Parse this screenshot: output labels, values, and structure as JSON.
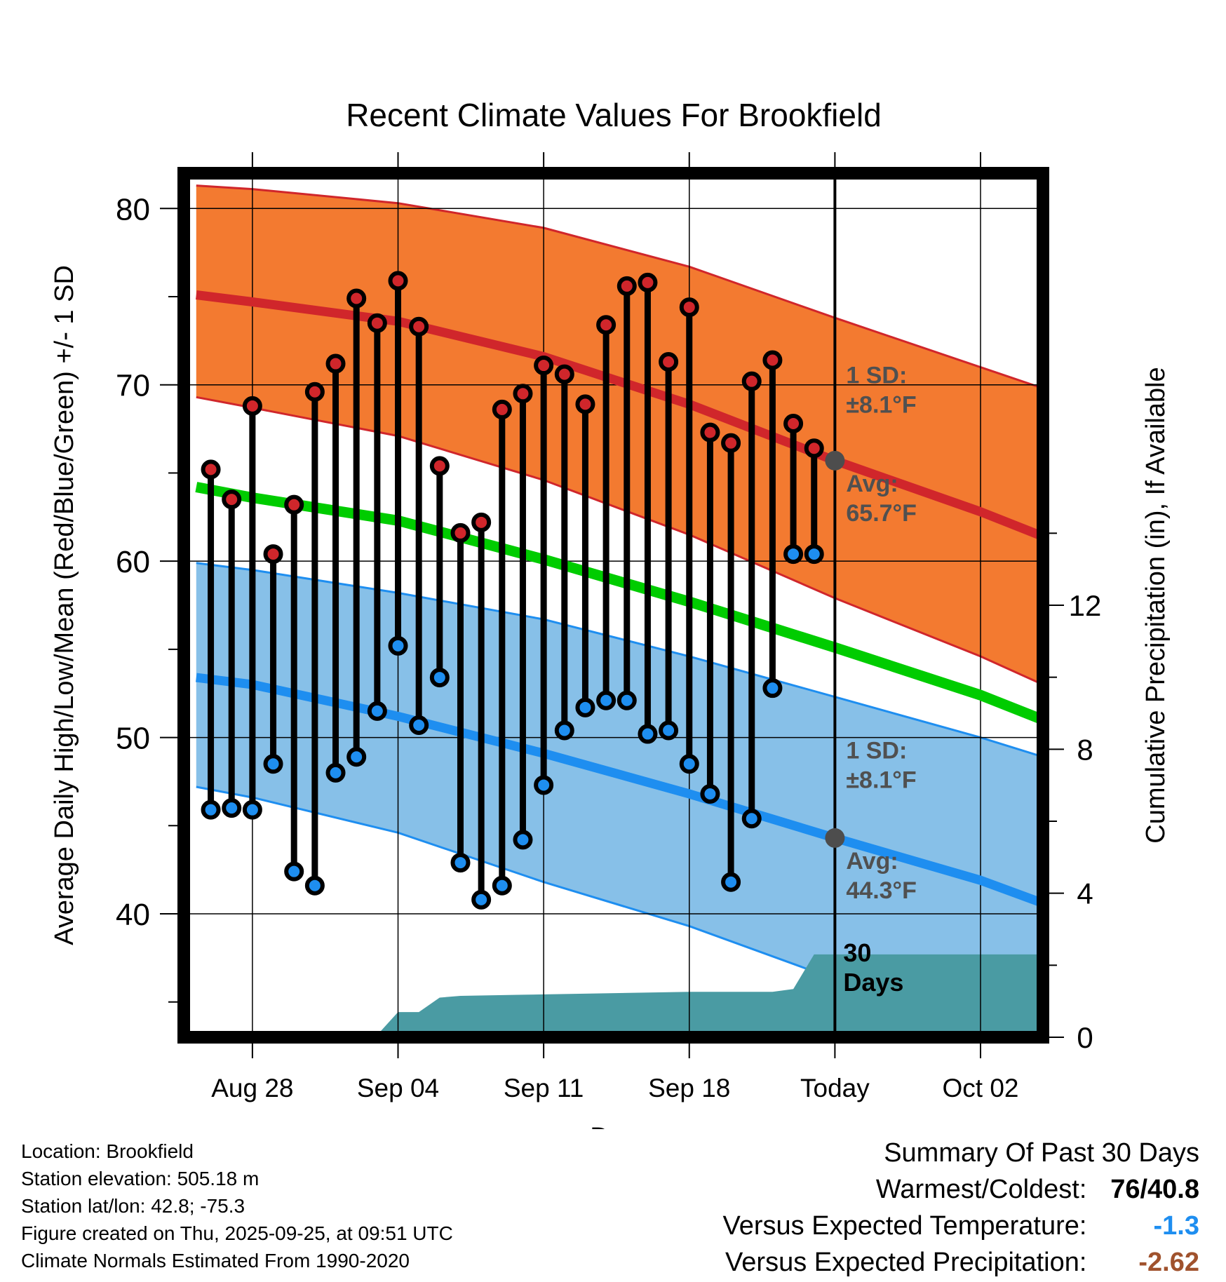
{
  "chart_data": {
    "type": "line",
    "title": "Recent Climate Values For Brookfield",
    "xlabel": "Day",
    "ylabel": "Average Daily High/Low/Mean (Red/Blue/Green) +/- 1 SD",
    "y2label": "Cumulative Precipitation (in), If Available",
    "xlim": [
      -3.3,
      38
    ],
    "ylim": [
      33,
      82
    ],
    "y2lim": [
      0,
      24
    ],
    "yticks": [
      40,
      50,
      60,
      70,
      80
    ],
    "y2ticks": [
      0,
      4,
      8,
      12
    ],
    "xticks": [
      {
        "day": 0,
        "label": "Aug 28"
      },
      {
        "day": 7,
        "label": "Sep 04"
      },
      {
        "day": 14,
        "label": "Sep 11"
      },
      {
        "day": 21,
        "label": "Sep 18"
      },
      {
        "day": 28,
        "label": "Today"
      },
      {
        "day": 35,
        "label": "Oct 02"
      }
    ],
    "grid": true,
    "today_day": 28,
    "normal_high_mean": {
      "x": [
        -2.7,
        0,
        7,
        14,
        21,
        28,
        35,
        38
      ],
      "values": [
        75.1,
        74.7,
        73.6,
        71.6,
        68.9,
        65.7,
        62.8,
        61.4
      ]
    },
    "normal_high_lower": {
      "x": [
        -2.7,
        0,
        7,
        14,
        21,
        28,
        35,
        38
      ],
      "values": [
        69.3,
        68.7,
        67.1,
        64.6,
        61.5,
        57.9,
        54.6,
        53.0
      ]
    },
    "normal_high_upper": {
      "x": [
        -2.7,
        0,
        7,
        14,
        21,
        28,
        35,
        38
      ],
      "values": [
        81.3,
        81.1,
        80.3,
        78.9,
        76.7,
        73.8,
        71.0,
        69.8
      ]
    },
    "normal_mean": {
      "x": [
        -2.7,
        0,
        7,
        14,
        21,
        28,
        35,
        38
      ],
      "values": [
        64.2,
        63.6,
        62.3,
        60.1,
        57.7,
        55.1,
        52.4,
        51.0
      ]
    },
    "normal_low_mean": {
      "x": [
        -2.7,
        0,
        7,
        14,
        21,
        28,
        35,
        38
      ],
      "values": [
        53.4,
        53.0,
        51.2,
        49.1,
        46.8,
        44.3,
        41.9,
        40.6
      ]
    },
    "normal_low_lower": {
      "x": [
        -2.7,
        0,
        7,
        14,
        21,
        28,
        35,
        38
      ],
      "values": [
        47.2,
        46.6,
        44.6,
        41.8,
        39.3,
        36.3,
        33.9,
        32.8
      ]
    },
    "normal_low_upper": {
      "x": [
        -2.7,
        0,
        7,
        14,
        21,
        28,
        35,
        38
      ],
      "values": [
        59.9,
        59.5,
        58.2,
        56.7,
        54.6,
        52.3,
        50.0,
        48.9
      ]
    },
    "days": [
      -2,
      -1,
      0,
      1,
      2,
      3,
      4,
      5,
      6,
      7,
      8,
      9,
      10,
      11,
      12,
      13,
      14,
      15,
      16,
      17,
      18,
      19,
      20,
      21,
      22,
      23,
      24,
      25,
      26,
      27
    ],
    "highs": [
      65.2,
      63.5,
      68.8,
      60.4,
      63.2,
      69.6,
      71.2,
      74.9,
      73.5,
      75.9,
      73.3,
      65.4,
      61.6,
      62.2,
      68.6,
      69.5,
      71.1,
      70.6,
      68.9,
      73.4,
      75.6,
      75.8,
      71.3,
      74.4,
      67.3,
      66.7,
      70.2,
      71.4,
      67.8,
      66.4
    ],
    "lows": [
      45.9,
      46.0,
      45.9,
      48.5,
      42.4,
      41.6,
      48.0,
      48.9,
      51.5,
      55.2,
      50.7,
      53.4,
      42.9,
      40.8,
      41.6,
      44.2,
      47.3,
      50.4,
      51.7,
      52.1,
      52.1,
      50.2,
      50.4,
      48.5,
      46.8,
      41.8,
      45.4,
      52.8,
      60.4,
      60.4
    ],
    "precip": {
      "x": [
        -3.3,
        5.9,
        7.0,
        8.0,
        9.0,
        10.0,
        13.0,
        21.0,
        25.0,
        26.0,
        27.0,
        38.0
      ],
      "values": [
        0,
        0,
        0.7,
        0.7,
        1.1,
        1.15,
        1.18,
        1.26,
        1.26,
        1.34,
        2.3,
        2.3
      ]
    },
    "colors": {
      "high_band": "#f37a30",
      "high_line": "#d0262b",
      "low_band": "#87c0e8",
      "low_line": "#1e8ef0",
      "mean_line": "#00cc00",
      "precip": "#4a9ba3",
      "today_dot": "#4d4d4d",
      "label_gray": "#505050"
    },
    "annotations": {
      "high_sd_line1": "1 SD:",
      "high_sd_line2": "±8.1°F",
      "high_avg_line1": "Avg:",
      "high_avg_line2": "65.7°F",
      "low_sd_line1": "1 SD:",
      "low_sd_line2": "±8.1°F",
      "low_avg_line1": "Avg:",
      "low_avg_line2": "44.3°F",
      "precip_line1": "30",
      "precip_line2": "Days"
    }
  },
  "footer": {
    "location": "Location: Brookfield",
    "elevation": "Station elevation: 505.18 m",
    "latlon": "Station lat/lon: 42.8; -75.3",
    "created": "Figure created on Thu, 2025-09-25, at 09:51 UTC",
    "normals": "Climate Normals Estimated From 1990-2020"
  },
  "summary": {
    "title": "Summary Of Past 30 Days",
    "warmest_label": "Warmest/Coldest:",
    "warmest_value": "76/40.8",
    "temp_label": "Versus Expected Temperature:",
    "temp_value": "-1.3",
    "temp_color": "#1e8ef0",
    "precip_label": "Versus Expected Precipitation:",
    "precip_value": "-2.62",
    "precip_color": "#a0522d"
  }
}
